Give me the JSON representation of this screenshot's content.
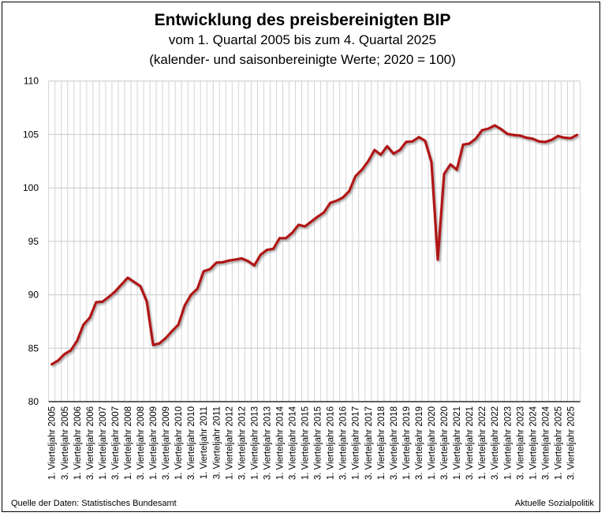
{
  "chart_data": {
    "type": "line",
    "title": "Entwicklung des preisbereinigten BIP",
    "subtitle_1": "vom 1. Quartal 2005 bis zum 4. Quartal 2025",
    "subtitle_2": "(kalender- und saisonbereinigte Werte; 2020 = 100)",
    "xlabel": "",
    "ylabel": "",
    "ylim": [
      80,
      110
    ],
    "yticks": [
      80,
      85,
      90,
      95,
      100,
      105,
      110
    ],
    "grid": true,
    "legend": "none",
    "line_color": "#b01414",
    "x_tick_labels": [
      "1. Vierteljahr 2005",
      "3. Vierteljahr 2005",
      "1. Vierteljahr 2006",
      "3. Vierteljahr 2006",
      "1. Vierteljahr 2007",
      "3. Vierteljahr 2007",
      "1. Vierteljahr 2008",
      "3. Vierteljahr 2008",
      "1. Vierteljahr 2009",
      "3. Vierteljahr 2009",
      "1. Vierteljahr 2010",
      "3. Vierteljahr 2010",
      "1. Vierteljahr 2011",
      "3. Vierteljahr 2011",
      "1. Vierteljahr 2012",
      "3. Vierteljahr 2012",
      "1. Vierteljahr 2013",
      "3. Vierteljahr 2013",
      "1. Vierteljahr 2014",
      "3. Vierteljahr 2014",
      "1. Vierteljahr 2015",
      "3. Vierteljahr 2015",
      "1. Vierteljahr 2016",
      "3. Vierteljahr 2016",
      "1. Vierteljahr 2017",
      "3. Vierteljahr 2017",
      "1. Vierteljahr 2018",
      "3. Vierteljahr 2018",
      "1. Vierteljahr 2019",
      "3. Vierteljahr 2019",
      "1. Vierteljahr 2020",
      "3. Vierteljahr 2020",
      "1. Vierteljahr 2021",
      "3. Vierteljahr 2021",
      "1. Vierteljahr 2022",
      "3. Vierteljahr 2022",
      "1. Vierteljahr 2023",
      "3. Vierteljahr 2023",
      "1. Vierteljahr 2024",
      "3. Vierteljahr 2024",
      "1. Vierteljahr 2025",
      "3. Vierteljahr 2025"
    ],
    "series": [
      {
        "name": "Preisbereinigtes BIP (2020 = 100)",
        "values": [
          83.5,
          83.85,
          84.45,
          84.8,
          85.7,
          87.2,
          87.85,
          89.3,
          89.35,
          89.8,
          90.3,
          90.95,
          91.6,
          91.2,
          90.8,
          89.4,
          85.3,
          85.45,
          85.95,
          86.6,
          87.2,
          89.0,
          90.0,
          90.55,
          92.2,
          92.4,
          93.0,
          93.05,
          93.2,
          93.3,
          93.4,
          93.15,
          92.75,
          93.75,
          94.2,
          94.3,
          95.3,
          95.3,
          95.8,
          96.55,
          96.4,
          96.85,
          97.3,
          97.7,
          98.6,
          98.8,
          99.1,
          99.7,
          101.1,
          101.7,
          102.5,
          103.55,
          103.1,
          103.9,
          103.2,
          103.55,
          104.3,
          104.35,
          104.75,
          104.4,
          102.4,
          93.3,
          101.3,
          102.2,
          101.7,
          104.05,
          104.15,
          104.6,
          105.4,
          105.55,
          105.85,
          105.5,
          105.05,
          104.95,
          104.9,
          104.7,
          104.6,
          104.35,
          104.3,
          104.5,
          104.85,
          104.7,
          104.65,
          104.95
        ]
      }
    ]
  },
  "footer": {
    "source": "Quelle der Daten: Statistisches Bundesamt",
    "publisher": "Aktuelle Sozialpolitik"
  }
}
